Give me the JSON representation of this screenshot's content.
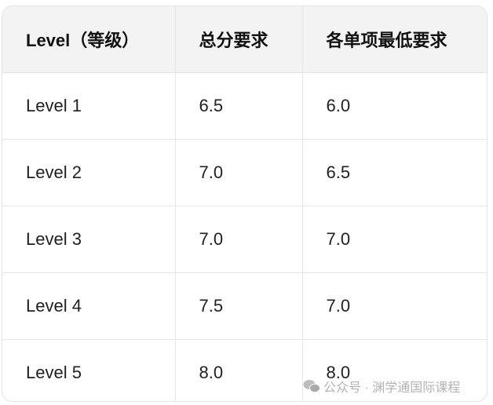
{
  "table": {
    "headers": [
      "Level（等级）",
      "总分要求",
      "各单项最低要求"
    ],
    "rows": [
      [
        "Level 1",
        "6.5",
        "6.0"
      ],
      [
        "Level 2",
        "7.0",
        "6.5"
      ],
      [
        "Level 3",
        "7.0",
        "7.0"
      ],
      [
        "Level 4",
        "7.5",
        "7.0"
      ],
      [
        "Level 5",
        "8.0",
        "8.0"
      ]
    ]
  },
  "watermark": {
    "icon": "wechat-icon",
    "text": "公众号 · 渊学通国际课程"
  }
}
